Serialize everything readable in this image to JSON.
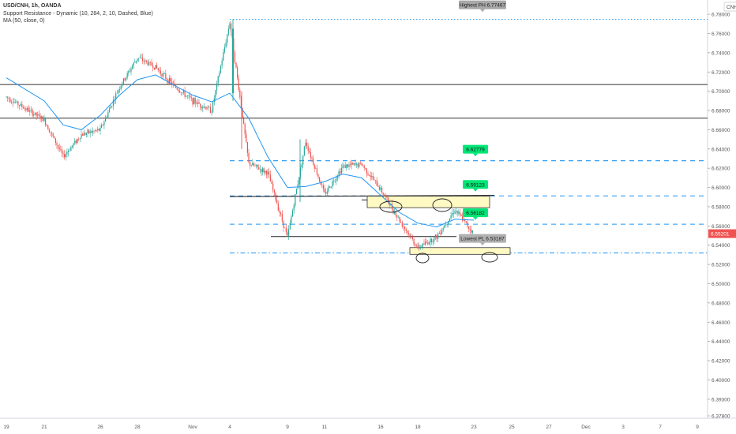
{
  "header": {
    "symbol_line": "USD/CNH, 1h, OANDA",
    "indicator_line": "Support Resistance - Dynamic (10, 284, 2, 10, Dashed, Blue)",
    "ma_line": "MA (50, close, 0)",
    "currency_badge": "CNH"
  },
  "colors": {
    "candle_up": "#26a69a",
    "candle_down": "#ef5350",
    "ma_line": "#2196f3",
    "dynamic_level": "#2196f3",
    "level_badge": "#00e676",
    "info_badge": "#9e9e9e",
    "price_badge": "#ef5350",
    "zone_fill": "#fff9c4"
  },
  "chart_data": {
    "type": "candlestick",
    "symbol": "USD/CNH",
    "timeframe": "1h",
    "y_axis": {
      "range": [
        6.37,
        6.785
      ],
      "ticks": [
        "6.78000",
        "6.76000",
        "6.74000",
        "6.72000",
        "6.70000",
        "6.68000",
        "6.66000",
        "6.64000",
        "6.62000",
        "6.60000",
        "6.58000",
        "6.56000",
        "6.54000",
        "6.52000",
        "6.50000",
        "6.48000",
        "6.46000",
        "6.44000",
        "6.42000",
        "6.40000",
        "6.39300",
        "6.37800"
      ]
    },
    "x_axis": {
      "ticks": [
        "19",
        "21",
        "26",
        "28",
        "Nov",
        "4",
        "9",
        "11",
        "16",
        "18",
        "23",
        "25",
        "27",
        "Dec",
        "3",
        "7",
        "9"
      ]
    },
    "price_path": [
      {
        "x": "Oct 19",
        "y": 6.694
      },
      {
        "x": "Oct 21",
        "y": 6.67
      },
      {
        "x": "Oct 22",
        "y": 6.632
      },
      {
        "x": "Oct 23",
        "y": 6.655
      },
      {
        "x": "Oct 26",
        "y": 6.66
      },
      {
        "x": "Oct 27",
        "y": 6.702
      },
      {
        "x": "Oct 28",
        "y": 6.735
      },
      {
        "x": "Oct 29",
        "y": 6.725
      },
      {
        "x": "Oct 30",
        "y": 6.705
      },
      {
        "x": "Nov 2",
        "y": 6.69
      },
      {
        "x": "Nov 3",
        "y": 6.68
      },
      {
        "x": "Nov 4",
        "y": 6.772
      },
      {
        "x": "Nov 5",
        "y": 6.625
      },
      {
        "x": "Nov 6",
        "y": 6.615
      },
      {
        "x": "Nov 9",
        "y": 6.548
      },
      {
        "x": "Nov 10",
        "y": 6.648
      },
      {
        "x": "Nov 11",
        "y": 6.593
      },
      {
        "x": "Nov 12",
        "y": 6.622
      },
      {
        "x": "Nov 13",
        "y": 6.624
      },
      {
        "x": "Nov 16",
        "y": 6.598
      },
      {
        "x": "Nov 17",
        "y": 6.566
      },
      {
        "x": "Nov 18",
        "y": 6.537
      },
      {
        "x": "Nov 19",
        "y": 6.549
      },
      {
        "x": "Nov 20",
        "y": 6.577
      },
      {
        "x": "Nov 23",
        "y": 6.552
      }
    ],
    "moving_average": {
      "label": "MA (50, close, 0)",
      "points": [
        {
          "x": "Oct 19",
          "y": 6.714
        },
        {
          "x": "Oct 21",
          "y": 6.69
        },
        {
          "x": "Oct 22",
          "y": 6.665
        },
        {
          "x": "Oct 23",
          "y": 6.66
        },
        {
          "x": "Oct 26",
          "y": 6.675
        },
        {
          "x": "Oct 27",
          "y": 6.695
        },
        {
          "x": "Oct 28",
          "y": 6.712
        },
        {
          "x": "Oct 29",
          "y": 6.717
        },
        {
          "x": "Oct 30",
          "y": 6.706
        },
        {
          "x": "Nov 2",
          "y": 6.696
        },
        {
          "x": "Nov 3",
          "y": 6.689
        },
        {
          "x": "Nov 4",
          "y": 6.698
        },
        {
          "x": "Nov 5",
          "y": 6.672
        },
        {
          "x": "Nov 6",
          "y": 6.632
        },
        {
          "x": "Nov 9",
          "y": 6.6
        },
        {
          "x": "Nov 10",
          "y": 6.601
        },
        {
          "x": "Nov 11",
          "y": 6.606
        },
        {
          "x": "Nov 12",
          "y": 6.614
        },
        {
          "x": "Nov 13",
          "y": 6.61
        },
        {
          "x": "Nov 16",
          "y": 6.592
        },
        {
          "x": "Nov 17",
          "y": 6.574
        },
        {
          "x": "Nov 18",
          "y": 6.563
        },
        {
          "x": "Nov 19",
          "y": 6.559
        },
        {
          "x": "Nov 20",
          "y": 6.567
        },
        {
          "x": "Nov 23",
          "y": 6.566
        }
      ]
    },
    "horizontal_lines": [
      {
        "price": 6.707,
        "style": "solid"
      },
      {
        "price": 6.672,
        "style": "solid"
      }
    ],
    "dynamic_levels": [
      {
        "price": 6.77467,
        "style": "dotted",
        "label": "Highest PH 6.77467",
        "badge": "gray"
      },
      {
        "price": 6.62779,
        "style": "dashed",
        "label": "6.62779",
        "badge": "green"
      },
      {
        "price": 6.59123,
        "style": "dashed",
        "label": "6.59123",
        "badge": "green"
      },
      {
        "price": 6.56182,
        "style": "dashed",
        "label": "6.56182",
        "badge": "green"
      },
      {
        "price": 6.53187,
        "style": "dash-dot",
        "label": "Lowest PL 6.53187",
        "badge": "gray"
      }
    ],
    "drawn_support_lines": [
      {
        "from": "Nov 8",
        "to": "Nov 19",
        "price": 6.549
      },
      {
        "from": "Nov 14",
        "to": "Nov 18",
        "price": 6.587
      }
    ],
    "zones": [
      {
        "from": "Nov 15",
        "to": "Nov 21",
        "top": 6.591,
        "bottom": 6.579
      },
      {
        "from": "Nov 18",
        "to": "Nov 22",
        "top": 6.5375,
        "bottom": 6.5305
      }
    ],
    "current_price": {
      "value": 6.55201,
      "label": "6.55201"
    }
  }
}
